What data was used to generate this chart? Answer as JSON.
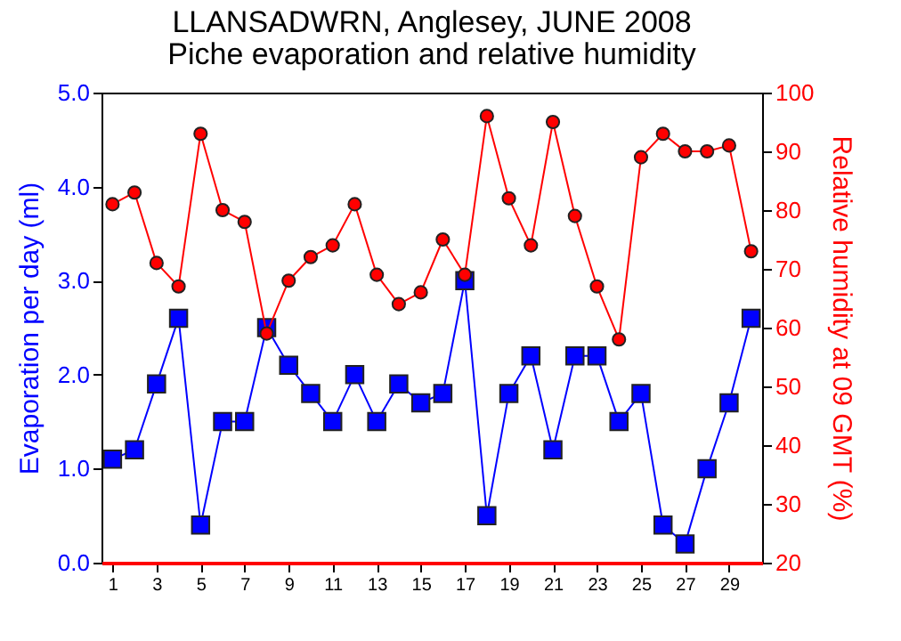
{
  "chart_data": {
    "type": "line",
    "title": "LLANSADWRN, Anglesey, JUNE 2008",
    "subtitle": "Piche evaporation and relative humidity",
    "ylabel": "Evaporation per day (ml)",
    "y2label": "Relative humidity at 09 GMT (%)",
    "x": [
      1,
      2,
      3,
      4,
      5,
      6,
      7,
      8,
      9,
      10,
      11,
      12,
      13,
      14,
      15,
      16,
      17,
      18,
      19,
      20,
      21,
      22,
      23,
      24,
      25,
      26,
      27,
      28,
      29,
      30
    ],
    "series": [
      {
        "color": "#0000ff",
        "marker": "square",
        "values": [
          1.1,
          1.2,
          1.9,
          2.6,
          0.4,
          1.5,
          1.5,
          2.5,
          2.1,
          1.8,
          1.5,
          2.0,
          1.5,
          1.9,
          1.7,
          1.8,
          3.0,
          0.5,
          1.8,
          2.2,
          1.2,
          2.2,
          2.2,
          1.5,
          1.8,
          0.4,
          0.2,
          1.0,
          1.7,
          2.6
        ]
      },
      {
        "color": "#ff0000",
        "marker": "circle",
        "axis": "y2",
        "values": [
          81,
          83,
          71,
          67,
          93,
          80,
          78,
          59,
          68,
          72,
          74,
          81,
          69,
          64,
          66,
          75,
          69,
          96,
          82,
          74,
          95,
          79,
          67,
          58,
          89,
          93,
          90,
          90,
          91,
          73
        ]
      }
    ],
    "xlim": [
      0.5,
      30.5
    ],
    "xticks": [
      1,
      3,
      5,
      7,
      9,
      11,
      13,
      15,
      17,
      19,
      21,
      23,
      25,
      27,
      29
    ],
    "ylim": [
      0,
      5
    ],
    "yticks": [
      {
        "value": 0,
        "label": "0.0"
      },
      {
        "value": 1,
        "label": "1.0"
      },
      {
        "value": 2,
        "label": "2.0"
      },
      {
        "value": 3,
        "label": "3.0"
      },
      {
        "value": 4,
        "label": "4.0"
      },
      {
        "value": 5,
        "label": "5.0"
      }
    ],
    "y2lim": [
      20,
      100
    ],
    "y2ticks": [
      20,
      30,
      40,
      50,
      60,
      70,
      80,
      90,
      100
    ],
    "grid": false,
    "legend": false,
    "line_style": "solid"
  }
}
